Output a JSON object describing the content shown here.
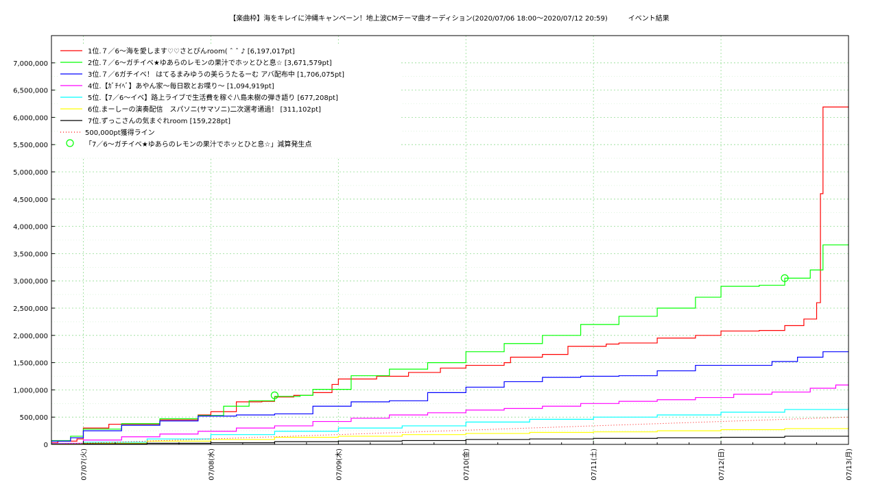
{
  "chart_data": {
    "type": "line",
    "title": "【楽曲枠】海をキレイに沖縄キャンペーン！地上波CMテーマ曲オーディション(2020/07/06 18:00〜2020/07/12 20:59)　　　イベント結果",
    "xlabel": "",
    "ylabel": "",
    "x_ticks": [
      "07/07(火)",
      "07/08(水)",
      "07/09(木)",
      "07/10(金)",
      "07/11(土)",
      "07/12(日)",
      "07/13(月)"
    ],
    "y_ticks": [
      "0",
      "500,000",
      "1,000,000",
      "1,500,000",
      "2,000,000",
      "2,500,000",
      "3,000,000",
      "3,500,000",
      "4,000,000",
      "4,500,000",
      "5,000,000",
      "5,500,000",
      "6,000,000",
      "6,500,000",
      "7,000,000"
    ],
    "xlim": [
      -0.25,
      6.0
    ],
    "ylim": [
      0,
      7500000
    ],
    "grid": true,
    "legend_position": "top-left",
    "series": [
      {
        "name": "1位.７／6〜海を愛します♡♡さとぴんroom( ˆ ˆ ♪ [6,197,017pt]",
        "color": "#ff0000",
        "x": [
          -0.25,
          -0.2,
          -0.05,
          0.0,
          0.2,
          0.6,
          0.9,
          1.0,
          1.2,
          1.4,
          1.5,
          1.65,
          1.8,
          1.95,
          2.0,
          2.3,
          2.55,
          2.8,
          3.0,
          3.3,
          3.35,
          3.6,
          3.8,
          4.1,
          4.2,
          4.5,
          4.8,
          5.0,
          5.3,
          5.5,
          5.65,
          5.72,
          5.75,
          5.78,
          5.8,
          6.0
        ],
        "y": [
          30000,
          60000,
          100000,
          300000,
          370000,
          450000,
          540000,
          600000,
          780000,
          790000,
          870000,
          900000,
          950000,
          1100000,
          1200000,
          1250000,
          1320000,
          1400000,
          1450000,
          1500000,
          1600000,
          1650000,
          1800000,
          1840000,
          1860000,
          1950000,
          2000000,
          2080000,
          2090000,
          2180000,
          2300000,
          2300000,
          2600000,
          4600000,
          6190000,
          6197017
        ]
      },
      {
        "name": "2位.７／6〜ガチイベ★ゆあらのレモンの果汁でホッとひと息☆ [3,671,579pt]",
        "color": "#00ff00",
        "x": [
          -0.25,
          -0.1,
          0.0,
          0.3,
          0.6,
          0.9,
          1.1,
          1.3,
          1.5,
          1.7,
          1.8,
          2.1,
          2.4,
          2.7,
          3.0,
          3.3,
          3.6,
          3.9,
          4.2,
          4.5,
          4.8,
          5.0,
          5.3,
          5.5,
          5.7,
          5.8,
          6.0
        ],
        "y": [
          70000,
          150000,
          280000,
          380000,
          470000,
          530000,
          700000,
          800000,
          880000,
          900000,
          1010000,
          1260000,
          1380000,
          1500000,
          1700000,
          1850000,
          2000000,
          2200000,
          2350000,
          2500000,
          2700000,
          2900000,
          2920000,
          3050000,
          3200000,
          3660000,
          3671579
        ]
      },
      {
        "name": "3位.７／6ガチイベ！ はてるまみゆうの美らうたるーむ アバ配布中 [1,706,075pt]",
        "color": "#0000ff",
        "x": [
          -0.25,
          -0.1,
          0.0,
          0.3,
          0.6,
          0.9,
          1.2,
          1.5,
          1.8,
          2.1,
          2.4,
          2.7,
          3.0,
          3.3,
          3.6,
          3.9,
          4.2,
          4.5,
          4.8,
          5.1,
          5.4,
          5.6,
          5.8,
          6.0
        ],
        "y": [
          60000,
          120000,
          250000,
          350000,
          430000,
          520000,
          540000,
          560000,
          700000,
          780000,
          800000,
          950000,
          1050000,
          1150000,
          1230000,
          1250000,
          1260000,
          1350000,
          1450000,
          1450000,
          1520000,
          1600000,
          1700000,
          1706075
        ]
      },
      {
        "name": "4位.【ｶﾞﾁｲﾍﾞ】あやん家〜毎日歌とお喋り〜 [1,094,919pt]",
        "color": "#ff00ff",
        "x": [
          -0.25,
          0.0,
          0.3,
          0.6,
          0.9,
          1.2,
          1.5,
          1.8,
          2.1,
          2.4,
          2.7,
          3.0,
          3.3,
          3.6,
          3.9,
          4.2,
          4.5,
          4.8,
          5.1,
          5.4,
          5.7,
          5.9,
          6.0
        ],
        "y": [
          20000,
          80000,
          140000,
          190000,
          240000,
          300000,
          340000,
          420000,
          480000,
          540000,
          580000,
          630000,
          660000,
          700000,
          750000,
          790000,
          820000,
          860000,
          920000,
          960000,
          1030000,
          1090000,
          1094919
        ]
      },
      {
        "name": "5位.【7／6〜イベ】路上ライブで生活費を稼ぐ八島未樹の弾き語り [677,208pt]",
        "color": "#00ffff",
        "x": [
          -0.25,
          0.0,
          0.5,
          1.0,
          1.5,
          2.0,
          2.5,
          3.0,
          3.5,
          4.0,
          4.5,
          5.0,
          5.5,
          6.0
        ],
        "y": [
          10000,
          40000,
          100000,
          180000,
          240000,
          300000,
          340000,
          410000,
          460000,
          500000,
          540000,
          590000,
          640000,
          677208
        ]
      },
      {
        "name": "6位.まーしーの演奏配信　スパソニ(サマソニ)二次選考通過！ [311,102pt]",
        "color": "#ffff00",
        "x": [
          -0.25,
          0.0,
          0.5,
          1.0,
          1.5,
          2.0,
          2.5,
          3.0,
          3.5,
          4.0,
          4.5,
          5.0,
          5.5,
          6.0
        ],
        "y": [
          5000,
          20000,
          60000,
          90000,
          130000,
          150000,
          180000,
          200000,
          220000,
          230000,
          250000,
          270000,
          290000,
          311102
        ]
      },
      {
        "name": "7位.ずっこさんの気まぐれroom [159,228pt]",
        "color": "#000000",
        "x": [
          -0.25,
          0.0,
          0.5,
          1.0,
          1.5,
          2.0,
          2.5,
          3.0,
          3.5,
          4.0,
          4.5,
          5.0,
          5.5,
          6.0
        ],
        "y": [
          2000,
          10000,
          20000,
          30000,
          50000,
          60000,
          70000,
          90000,
          100000,
          110000,
          120000,
          130000,
          150000,
          159228
        ]
      },
      {
        "name": "500,000pt獲得ライン",
        "color": "#ff0000",
        "style": "dotted",
        "x": [
          -0.25,
          6.0
        ],
        "y": [
          0,
          500000
        ]
      }
    ],
    "markers": {
      "name": "「7／6〜ガチイベ★ゆあらのレモンの果汁でホッとひと息☆」減算発生点",
      "color": "#00ff00",
      "points": [
        {
          "x": 1.5,
          "y": 900000
        },
        {
          "x": 5.5,
          "y": 3050000
        }
      ]
    }
  }
}
